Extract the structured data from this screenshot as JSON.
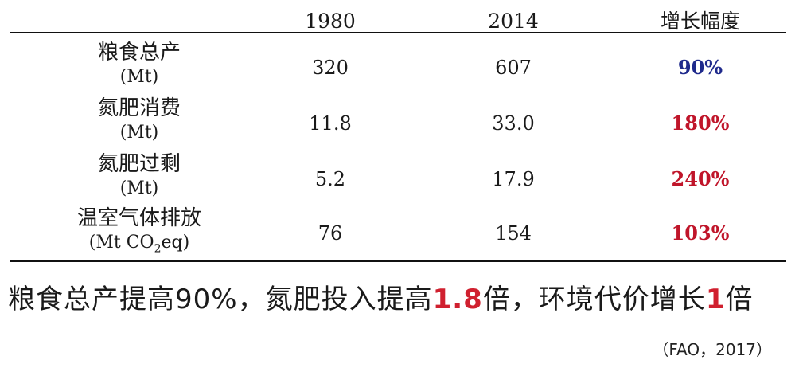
{
  "table": {
    "headers": [
      "",
      "1980",
      "2014",
      "增长幅度"
    ],
    "rows": [
      {
        "label": "粮食总产",
        "unit": "(Mt)",
        "v1980": "320",
        "v2014": "607",
        "growth": "90%"
      },
      {
        "label": "氮肥消费",
        "unit": "(Mt)",
        "v1980": "11.8",
        "v2014": "33.0",
        "growth": "180%"
      },
      {
        "label": "氮肥过剩",
        "unit": "(Mt)",
        "v1980": "5.2",
        "v2014": "17.9",
        "growth": "240%"
      },
      {
        "label": "温室气体排放",
        "unit_pre": "(Mt CO",
        "unit_sub": "2",
        "unit_post": "eq)",
        "v1980": "76",
        "v2014": "154",
        "growth": "103%"
      }
    ]
  },
  "summary": {
    "part1": "粮食总产提高90%，氮肥投入提高",
    "num1": "1.8",
    "part2": "倍，环境代价增长",
    "num2": "1",
    "part3": "倍"
  },
  "citation": "（FAO，2017）",
  "colors": {
    "growth_blue": "#1f2a8c",
    "growth_red": "#c0152a",
    "highlight_red": "#d0202f"
  }
}
